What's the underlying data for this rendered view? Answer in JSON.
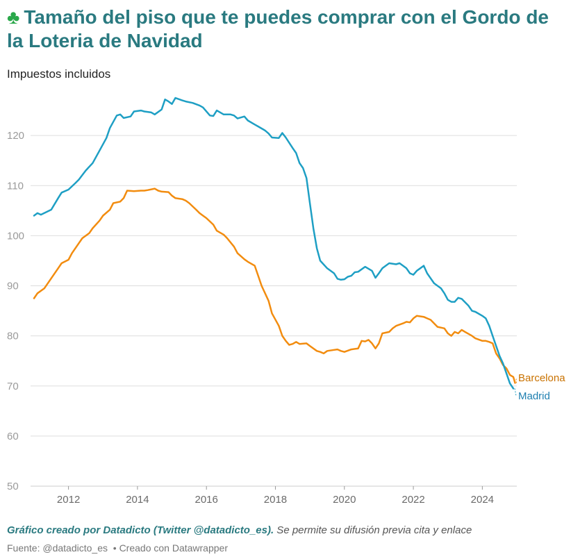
{
  "header": {
    "icon": "clover-icon",
    "title": "Tamaño del piso que te puedes comprar con el Gordo de la Loteria de Navidad",
    "subtitle": "Impuestos incluidos"
  },
  "footer": {
    "credit_bold": "Gráfico creado por Datadicto (Twitter @datadicto_es).",
    "credit_rest": " Se permite su difusión previa cita y enlace",
    "source_label": "Fuente:",
    "source_value": "@datadicto_es",
    "made_with": "Creado con Datawrapper"
  },
  "colors": {
    "madrid": "#1e9fc4",
    "barcelona": "#f28c0f",
    "title": "#2a7a80",
    "grid": "#dddddd"
  },
  "chart_data": {
    "type": "line",
    "title": "Tamaño del piso que te puedes comprar con el Gordo de la Loteria de Navidad",
    "subtitle": "Impuestos incluidos",
    "xlim": [
      2010.9,
      2025.0
    ],
    "ylim": [
      50,
      130
    ],
    "yticks": [
      50,
      60,
      70,
      80,
      90,
      100,
      110,
      120
    ],
    "xticks": [
      2012,
      2014,
      2016,
      2018,
      2020,
      2022,
      2024
    ],
    "grid": true,
    "legend": "direct labels at line ends",
    "series": [
      {
        "name": "Madrid",
        "label_color": "#1e7fb0",
        "points": [
          [
            2011.0,
            104
          ],
          [
            2011.1,
            104.5
          ],
          [
            2011.2,
            104.2
          ],
          [
            2011.5,
            105.2
          ],
          [
            2011.7,
            107.5
          ],
          [
            2011.8,
            108.6
          ],
          [
            2012.0,
            109.2
          ],
          [
            2012.2,
            110.5
          ],
          [
            2012.3,
            111.2
          ],
          [
            2012.5,
            113
          ],
          [
            2012.7,
            114.5
          ],
          [
            2012.9,
            117
          ],
          [
            2013.1,
            119.5
          ],
          [
            2013.2,
            121.5
          ],
          [
            2013.4,
            124
          ],
          [
            2013.5,
            124.2
          ],
          [
            2013.6,
            123.5
          ],
          [
            2013.8,
            123.8
          ],
          [
            2013.9,
            124.8
          ],
          [
            2014.1,
            125
          ],
          [
            2014.2,
            124.8
          ],
          [
            2014.4,
            124.6
          ],
          [
            2014.5,
            124.2
          ],
          [
            2014.7,
            125.2
          ],
          [
            2014.8,
            127.2
          ],
          [
            2014.9,
            126.8
          ],
          [
            2015.0,
            126.3
          ],
          [
            2015.1,
            127.5
          ],
          [
            2015.3,
            127
          ],
          [
            2015.4,
            126.8
          ],
          [
            2015.6,
            126.5
          ],
          [
            2015.8,
            126
          ],
          [
            2015.9,
            125.6
          ],
          [
            2016.1,
            124
          ],
          [
            2016.2,
            123.9
          ],
          [
            2016.3,
            125
          ],
          [
            2016.5,
            124.2
          ],
          [
            2016.7,
            124.2
          ],
          [
            2016.8,
            124
          ],
          [
            2016.9,
            123.4
          ],
          [
            2017.1,
            123.8
          ],
          [
            2017.2,
            123
          ],
          [
            2017.4,
            122.2
          ],
          [
            2017.5,
            121.8
          ],
          [
            2017.7,
            121
          ],
          [
            2017.8,
            120.4
          ],
          [
            2017.9,
            119.6
          ],
          [
            2018.1,
            119.5
          ],
          [
            2018.2,
            120.5
          ],
          [
            2018.3,
            119.6
          ],
          [
            2018.5,
            117.5
          ],
          [
            2018.6,
            116.5
          ],
          [
            2018.7,
            114.5
          ],
          [
            2018.8,
            113.5
          ],
          [
            2018.9,
            111.5
          ],
          [
            2019.0,
            106.5
          ],
          [
            2019.1,
            101.5
          ],
          [
            2019.2,
            97.5
          ],
          [
            2019.3,
            95
          ],
          [
            2019.5,
            93.5
          ],
          [
            2019.7,
            92.5
          ],
          [
            2019.8,
            91.4
          ],
          [
            2019.9,
            91.2
          ],
          [
            2020.0,
            91.3
          ],
          [
            2020.1,
            91.8
          ],
          [
            2020.2,
            92
          ],
          [
            2020.3,
            92.7
          ],
          [
            2020.4,
            92.8
          ],
          [
            2020.6,
            93.8
          ],
          [
            2020.8,
            93
          ],
          [
            2020.9,
            91.6
          ],
          [
            2021.0,
            92.5
          ],
          [
            2021.1,
            93.5
          ],
          [
            2021.2,
            94
          ],
          [
            2021.3,
            94.5
          ],
          [
            2021.5,
            94.3
          ],
          [
            2021.6,
            94.5
          ],
          [
            2021.7,
            94
          ],
          [
            2021.8,
            93.5
          ],
          [
            2021.9,
            92.5
          ],
          [
            2022.0,
            92.2
          ],
          [
            2022.1,
            93
          ],
          [
            2022.2,
            93.5
          ],
          [
            2022.3,
            94
          ],
          [
            2022.4,
            92.5
          ],
          [
            2022.5,
            91.5
          ],
          [
            2022.6,
            90.5
          ],
          [
            2022.8,
            89.5
          ],
          [
            2022.9,
            88.5
          ],
          [
            2023.0,
            87.2
          ],
          [
            2023.1,
            86.8
          ],
          [
            2023.2,
            86.8
          ],
          [
            2023.3,
            87.6
          ],
          [
            2023.4,
            87.4
          ],
          [
            2023.6,
            86
          ],
          [
            2023.7,
            85
          ],
          [
            2023.8,
            84.8
          ],
          [
            2024.0,
            84
          ],
          [
            2024.1,
            83.5
          ],
          [
            2024.2,
            82
          ],
          [
            2024.3,
            80
          ],
          [
            2024.4,
            78
          ],
          [
            2024.5,
            76
          ],
          [
            2024.6,
            74.5
          ],
          [
            2024.7,
            72.5
          ],
          [
            2024.8,
            70.5
          ],
          [
            2024.9,
            69.5
          ]
        ]
      },
      {
        "name": "Barcelona",
        "label_color": "#c97200",
        "points": [
          [
            2011.0,
            87.5
          ],
          [
            2011.1,
            88.5
          ],
          [
            2011.3,
            89.5
          ],
          [
            2011.5,
            91.5
          ],
          [
            2011.7,
            93.5
          ],
          [
            2011.8,
            94.5
          ],
          [
            2012.0,
            95.2
          ],
          [
            2012.1,
            96.5
          ],
          [
            2012.3,
            98.5
          ],
          [
            2012.4,
            99.5
          ],
          [
            2012.6,
            100.5
          ],
          [
            2012.7,
            101.5
          ],
          [
            2012.9,
            103
          ],
          [
            2013.0,
            104
          ],
          [
            2013.2,
            105.2
          ],
          [
            2013.3,
            106.5
          ],
          [
            2013.5,
            106.8
          ],
          [
            2013.6,
            107.5
          ],
          [
            2013.7,
            109
          ],
          [
            2013.9,
            108.9
          ],
          [
            2014.1,
            109
          ],
          [
            2014.2,
            109
          ],
          [
            2014.3,
            109.1
          ],
          [
            2014.5,
            109.4
          ],
          [
            2014.6,
            109
          ],
          [
            2014.7,
            108.8
          ],
          [
            2014.9,
            108.7
          ],
          [
            2015.0,
            108
          ],
          [
            2015.1,
            107.5
          ],
          [
            2015.3,
            107.3
          ],
          [
            2015.4,
            107
          ],
          [
            2015.5,
            106.5
          ],
          [
            2015.7,
            105.2
          ],
          [
            2015.8,
            104.5
          ],
          [
            2015.9,
            104
          ],
          [
            2016.0,
            103.5
          ],
          [
            2016.2,
            102.2
          ],
          [
            2016.3,
            101
          ],
          [
            2016.5,
            100.2
          ],
          [
            2016.6,
            99.5
          ],
          [
            2016.8,
            97.8
          ],
          [
            2016.9,
            96.5
          ],
          [
            2017.1,
            95.3
          ],
          [
            2017.2,
            94.8
          ],
          [
            2017.4,
            94
          ],
          [
            2017.5,
            92
          ],
          [
            2017.6,
            90
          ],
          [
            2017.8,
            87
          ],
          [
            2017.9,
            84.5
          ],
          [
            2018.1,
            82
          ],
          [
            2018.2,
            80
          ],
          [
            2018.3,
            79
          ],
          [
            2018.4,
            78.2
          ],
          [
            2018.5,
            78.4
          ],
          [
            2018.6,
            78.8
          ],
          [
            2018.7,
            78.4
          ],
          [
            2018.9,
            78.5
          ],
          [
            2019.0,
            78
          ],
          [
            2019.2,
            77
          ],
          [
            2019.3,
            76.8
          ],
          [
            2019.4,
            76.5
          ],
          [
            2019.5,
            77
          ],
          [
            2019.7,
            77.2
          ],
          [
            2019.8,
            77.3
          ],
          [
            2019.9,
            77
          ],
          [
            2020.0,
            76.8
          ],
          [
            2020.2,
            77.3
          ],
          [
            2020.4,
            77.5
          ],
          [
            2020.5,
            79
          ],
          [
            2020.6,
            78.9
          ],
          [
            2020.7,
            79.2
          ],
          [
            2020.8,
            78.5
          ],
          [
            2020.9,
            77.5
          ],
          [
            2021.0,
            78.5
          ],
          [
            2021.1,
            80.5
          ],
          [
            2021.3,
            80.8
          ],
          [
            2021.4,
            81.5
          ],
          [
            2021.5,
            82
          ],
          [
            2021.7,
            82.5
          ],
          [
            2021.8,
            82.8
          ],
          [
            2021.9,
            82.7
          ],
          [
            2022.0,
            83.5
          ],
          [
            2022.1,
            84
          ],
          [
            2022.3,
            83.8
          ],
          [
            2022.4,
            83.5
          ],
          [
            2022.5,
            83.2
          ],
          [
            2022.6,
            82.5
          ],
          [
            2022.7,
            81.8
          ],
          [
            2022.9,
            81.5
          ],
          [
            2023.0,
            80.5
          ],
          [
            2023.1,
            80
          ],
          [
            2023.2,
            80.8
          ],
          [
            2023.3,
            80.5
          ],
          [
            2023.4,
            81.2
          ],
          [
            2023.5,
            80.8
          ],
          [
            2023.7,
            80
          ],
          [
            2023.8,
            79.5
          ],
          [
            2024.0,
            79
          ],
          [
            2024.1,
            79
          ],
          [
            2024.2,
            78.8
          ],
          [
            2024.3,
            78.5
          ],
          [
            2024.4,
            76.5
          ],
          [
            2024.5,
            75.5
          ],
          [
            2024.6,
            74.2
          ],
          [
            2024.7,
            73.5
          ],
          [
            2024.8,
            72.2
          ],
          [
            2024.9,
            71.8
          ],
          [
            2024.95,
            70.6
          ]
        ]
      }
    ]
  }
}
